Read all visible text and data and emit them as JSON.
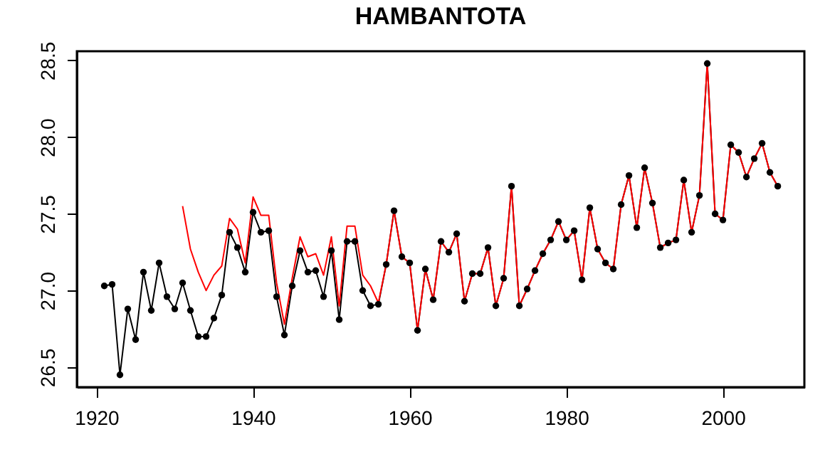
{
  "chart_data": {
    "type": "line",
    "title": "HAMBANTOTA",
    "x": [
      1921,
      1922,
      1923,
      1924,
      1925,
      1926,
      1927,
      1928,
      1929,
      1930,
      1931,
      1932,
      1933,
      1934,
      1935,
      1936,
      1937,
      1938,
      1939,
      1940,
      1941,
      1942,
      1943,
      1944,
      1945,
      1946,
      1947,
      1948,
      1949,
      1950,
      1951,
      1952,
      1953,
      1954,
      1955,
      1956,
      1957,
      1958,
      1959,
      1960,
      1961,
      1962,
      1963,
      1964,
      1965,
      1966,
      1967,
      1968,
      1969,
      1970,
      1971,
      1972,
      1973,
      1974,
      1975,
      1976,
      1977,
      1978,
      1979,
      1980,
      1981,
      1982,
      1983,
      1984,
      1985,
      1986,
      1987,
      1988,
      1989,
      1990,
      1991,
      1992,
      1993,
      1994,
      1995,
      1996,
      1997,
      1998,
      1999,
      2000,
      2001,
      2002,
      2003,
      2004,
      2005,
      2006,
      2007
    ],
    "series": [
      {
        "color": "#000000",
        "marker": "circle",
        "values": [
          27.03,
          27.04,
          26.45,
          26.88,
          26.68,
          27.12,
          26.87,
          27.18,
          26.96,
          26.88,
          27.05,
          26.87,
          26.7,
          26.7,
          26.82,
          26.97,
          27.38,
          27.28,
          27.12,
          27.51,
          27.38,
          27.39,
          26.96,
          26.71,
          27.03,
          27.26,
          27.12,
          27.13,
          26.96,
          27.26,
          26.81,
          27.32,
          27.32,
          27.0,
          26.9,
          26.91,
          27.17,
          27.52,
          27.22,
          27.18,
          26.74,
          27.14,
          26.94,
          27.32,
          27.25,
          27.37,
          26.93,
          27.11,
          27.11,
          27.28,
          26.9,
          27.08,
          27.68,
          26.9,
          27.01,
          27.13,
          27.24,
          27.33,
          27.45,
          27.33,
          27.39,
          27.07,
          27.54,
          27.27,
          27.18,
          27.14,
          27.56,
          27.75,
          27.41,
          27.8,
          27.57,
          27.28,
          27.31,
          27.33,
          27.72,
          27.38,
          27.62,
          28.48,
          27.5,
          27.46,
          27.95,
          27.9,
          27.74,
          27.86,
          27.96,
          27.77,
          27.68
        ]
      },
      {
        "color": "#ff0000",
        "marker": "none",
        "x": [
          1931,
          1932,
          1933,
          1934,
          1935,
          1936,
          1937,
          1938,
          1939,
          1940,
          1941,
          1942,
          1943,
          1944,
          1945,
          1946,
          1947,
          1948,
          1949,
          1950,
          1951,
          1952,
          1953,
          1954,
          1955,
          1956,
          1957,
          1958,
          1959,
          1960,
          1961,
          1962,
          1963,
          1964,
          1965,
          1966,
          1967,
          1968,
          1969,
          1970,
          1971,
          1972,
          1973,
          1974,
          1975,
          1976,
          1977,
          1978,
          1979,
          1980,
          1981,
          1982,
          1983,
          1984,
          1985,
          1986,
          1987,
          1988,
          1989,
          1990,
          1991,
          1992,
          1993,
          1994,
          1995,
          1996,
          1997,
          1998,
          1999,
          2000,
          2001,
          2002,
          2003,
          2004,
          2005,
          2006,
          2007
        ],
        "values": [
          27.55,
          27.27,
          27.12,
          27.0,
          27.1,
          27.16,
          27.47,
          27.4,
          27.18,
          27.61,
          27.49,
          27.49,
          27.05,
          26.78,
          27.08,
          27.35,
          27.22,
          27.24,
          27.1,
          27.35,
          26.9,
          27.42,
          27.42,
          27.1,
          27.03,
          26.92,
          27.17,
          27.52,
          27.22,
          27.18,
          26.74,
          27.14,
          26.94,
          27.32,
          27.25,
          27.37,
          26.93,
          27.11,
          27.11,
          27.28,
          26.9,
          27.08,
          27.68,
          26.9,
          27.01,
          27.13,
          27.24,
          27.33,
          27.45,
          27.33,
          27.39,
          27.07,
          27.54,
          27.27,
          27.18,
          27.14,
          27.56,
          27.75,
          27.41,
          27.8,
          27.57,
          27.28,
          27.31,
          27.33,
          27.72,
          27.38,
          27.62,
          28.48,
          27.5,
          27.46,
          27.95,
          27.9,
          27.74,
          27.86,
          27.96,
          27.77,
          27.68
        ]
      }
    ],
    "xlim": [
      1917.5,
      2010.4
    ],
    "ylim": [
      26.37,
      28.56
    ],
    "xticks": [
      1920,
      1940,
      1960,
      1980,
      2000
    ],
    "yticks": [
      {
        "value": 26.5,
        "label": "26.5"
      },
      {
        "value": 27,
        "label": "27.0"
      },
      {
        "value": 27.5,
        "label": "27.5"
      },
      {
        "value": 28,
        "label": "28.0"
      },
      {
        "value": 28.5,
        "label": "28.5"
      }
    ],
    "grid": false,
    "line_style": "solid"
  }
}
